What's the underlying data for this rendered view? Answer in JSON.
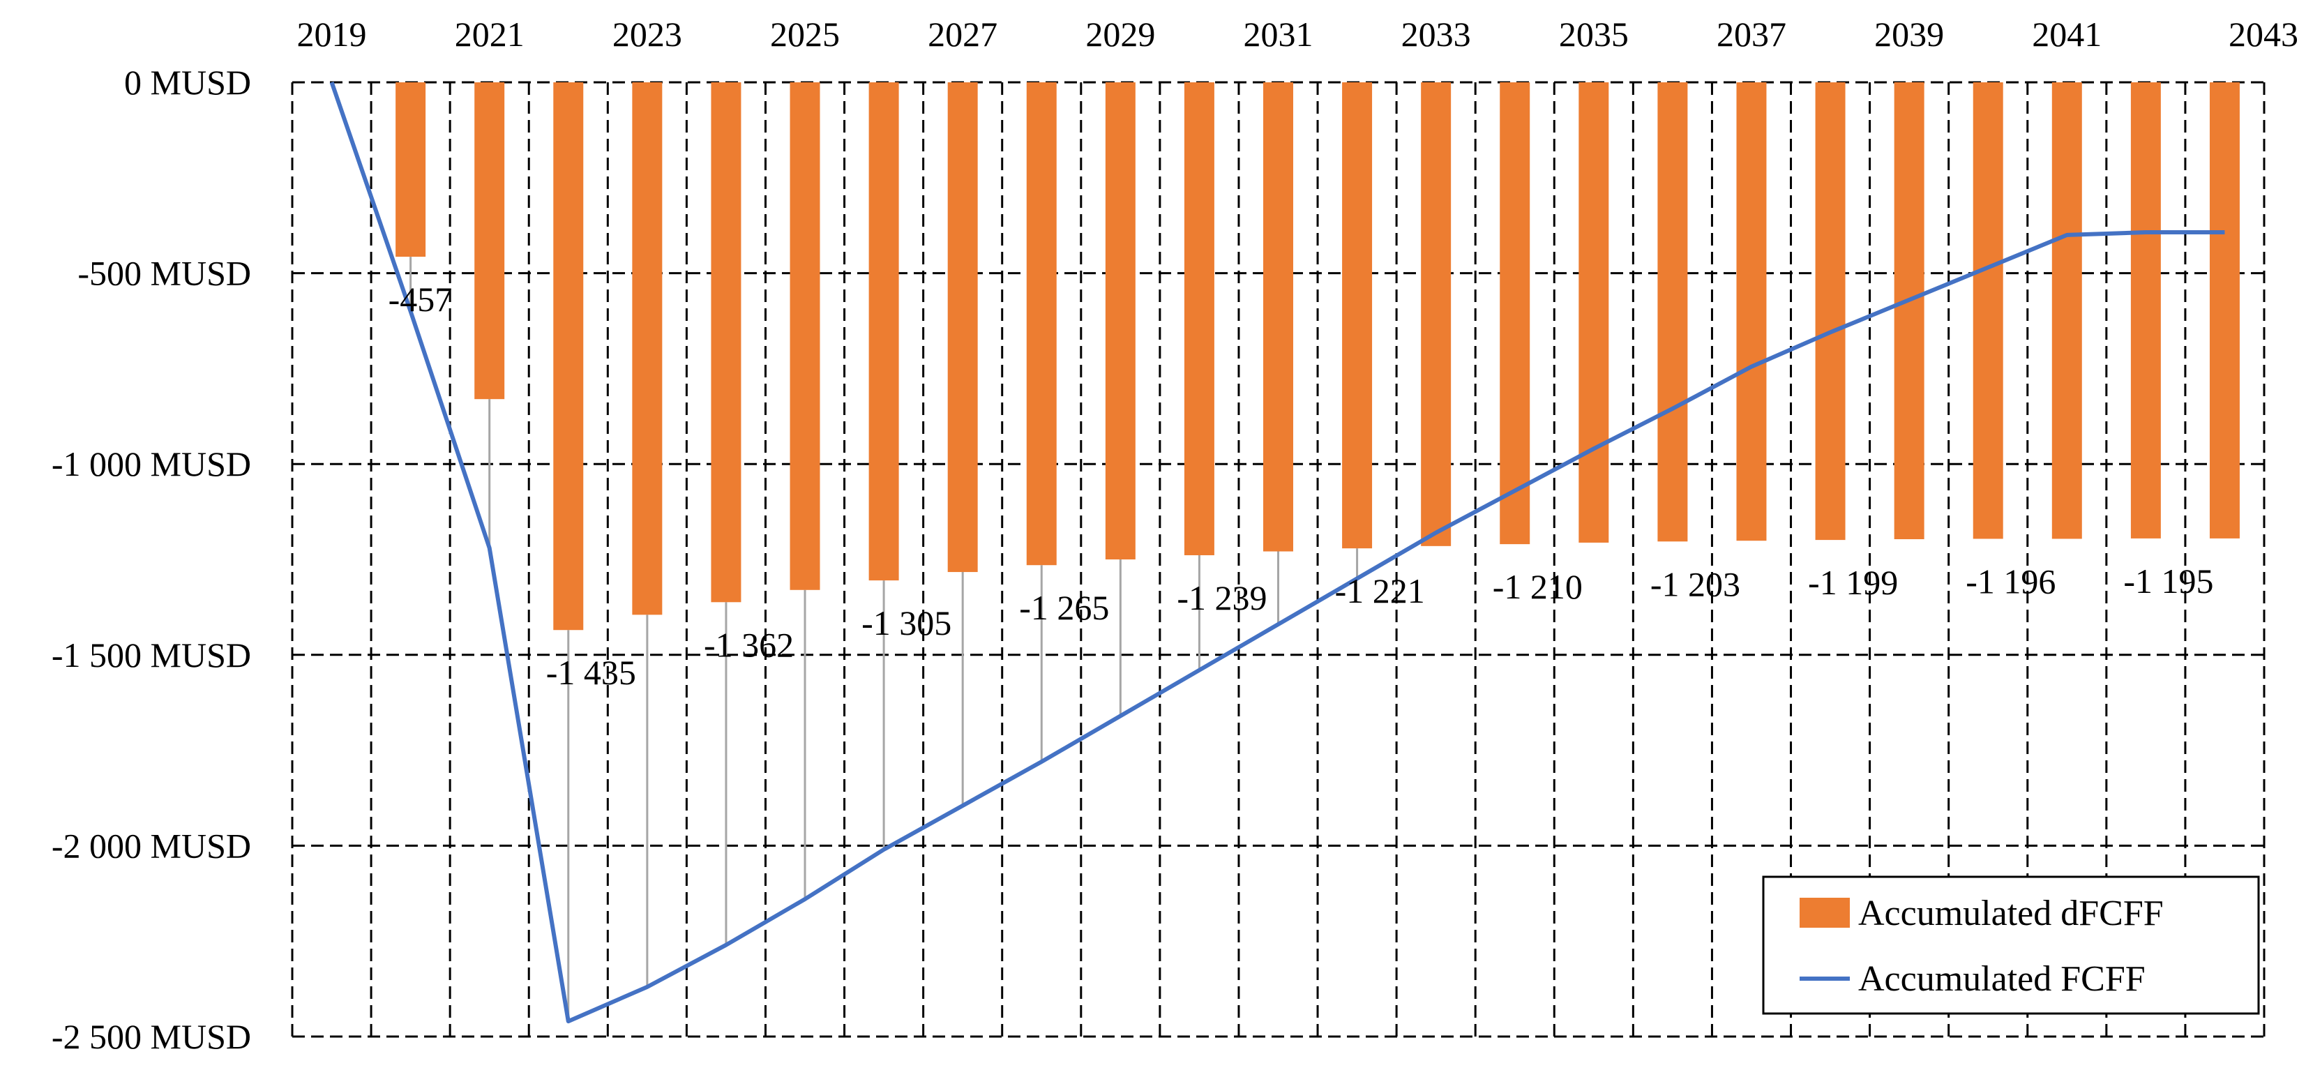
{
  "chart_data": {
    "type": "bar+line",
    "title": "",
    "xlabel": "",
    "ylabel": "",
    "x": [
      2019,
      2020,
      2021,
      2022,
      2023,
      2024,
      2025,
      2026,
      2027,
      2028,
      2029,
      2030,
      2031,
      2032,
      2033,
      2034,
      2035,
      2036,
      2037,
      2038,
      2039,
      2040,
      2041,
      2042,
      2043
    ],
    "x_tick_labels": [
      "2019",
      "2021",
      "2023",
      "2025",
      "2027",
      "2029",
      "2031",
      "2033",
      "2035",
      "2037",
      "2039",
      "2041",
      "2043"
    ],
    "y_tick_values": [
      0,
      -500,
      -1000,
      -1500,
      -2000,
      -2500
    ],
    "y_tick_labels": [
      "0 MUSD",
      "-500 MUSD",
      "-1 000 MUSD",
      "-1 500 MUSD",
      "-2 000 MUSD",
      "-2 500 MUSD"
    ],
    "ylim": [
      -2500,
      0
    ],
    "x_axis_position": "top",
    "grid": true,
    "legend_position": "bottom-right",
    "series": [
      {
        "name": "Accumulated dFCFF",
        "type": "bar",
        "color": "#ed7d31",
        "x": [
          2020,
          2021,
          2022,
          2023,
          2024,
          2025,
          2026,
          2027,
          2028,
          2029,
          2030,
          2031,
          2032,
          2033,
          2034,
          2035,
          2036,
          2037,
          2038,
          2039,
          2040,
          2041,
          2042,
          2043
        ],
        "values": [
          -457,
          -830,
          -1435,
          -1395,
          -1362,
          -1330,
          -1305,
          -1283,
          -1265,
          -1250,
          -1239,
          -1229,
          -1221,
          -1215,
          -1210,
          -1206,
          -1203,
          -1201,
          -1199,
          -1197,
          -1196,
          -1196,
          -1195,
          -1195
        ]
      },
      {
        "name": "Accumulated FCFF",
        "type": "line",
        "color": "#4472c4",
        "x": [
          2019,
          2020,
          2021,
          2022,
          2023,
          2024,
          2025,
          2026,
          2027,
          2028,
          2029,
          2030,
          2031,
          2032,
          2033,
          2034,
          2035,
          2036,
          2037,
          2038,
          2039,
          2040,
          2041,
          2042,
          2043
        ],
        "values": [
          0,
          -600,
          -1220,
          -2460,
          -2370,
          -2260,
          -2140,
          -2010,
          -1895,
          -1780,
          -1660,
          -1540,
          -1420,
          -1300,
          -1180,
          -1070,
          -960,
          -855,
          -745,
          -655,
          -570,
          -485,
          -400,
          -393,
          -393
        ]
      }
    ],
    "data_labels": {
      "series": "Accumulated dFCFF",
      "points": [
        {
          "x": 2020,
          "text": "-457"
        },
        {
          "x": 2022,
          "text": "-1 435"
        },
        {
          "x": 2024,
          "text": "-1 362"
        },
        {
          "x": 2026,
          "text": "-1 305"
        },
        {
          "x": 2028,
          "text": "-1 265"
        },
        {
          "x": 2030,
          "text": "-1 239"
        },
        {
          "x": 2032,
          "text": "-1 221"
        },
        {
          "x": 2034,
          "text": "-1 210"
        },
        {
          "x": 2036,
          "text": "-1 203"
        },
        {
          "x": 2038,
          "text": "-1 199"
        },
        {
          "x": 2040,
          "text": "-1 196"
        },
        {
          "x": 2042,
          "text": "-1 195"
        }
      ]
    }
  }
}
